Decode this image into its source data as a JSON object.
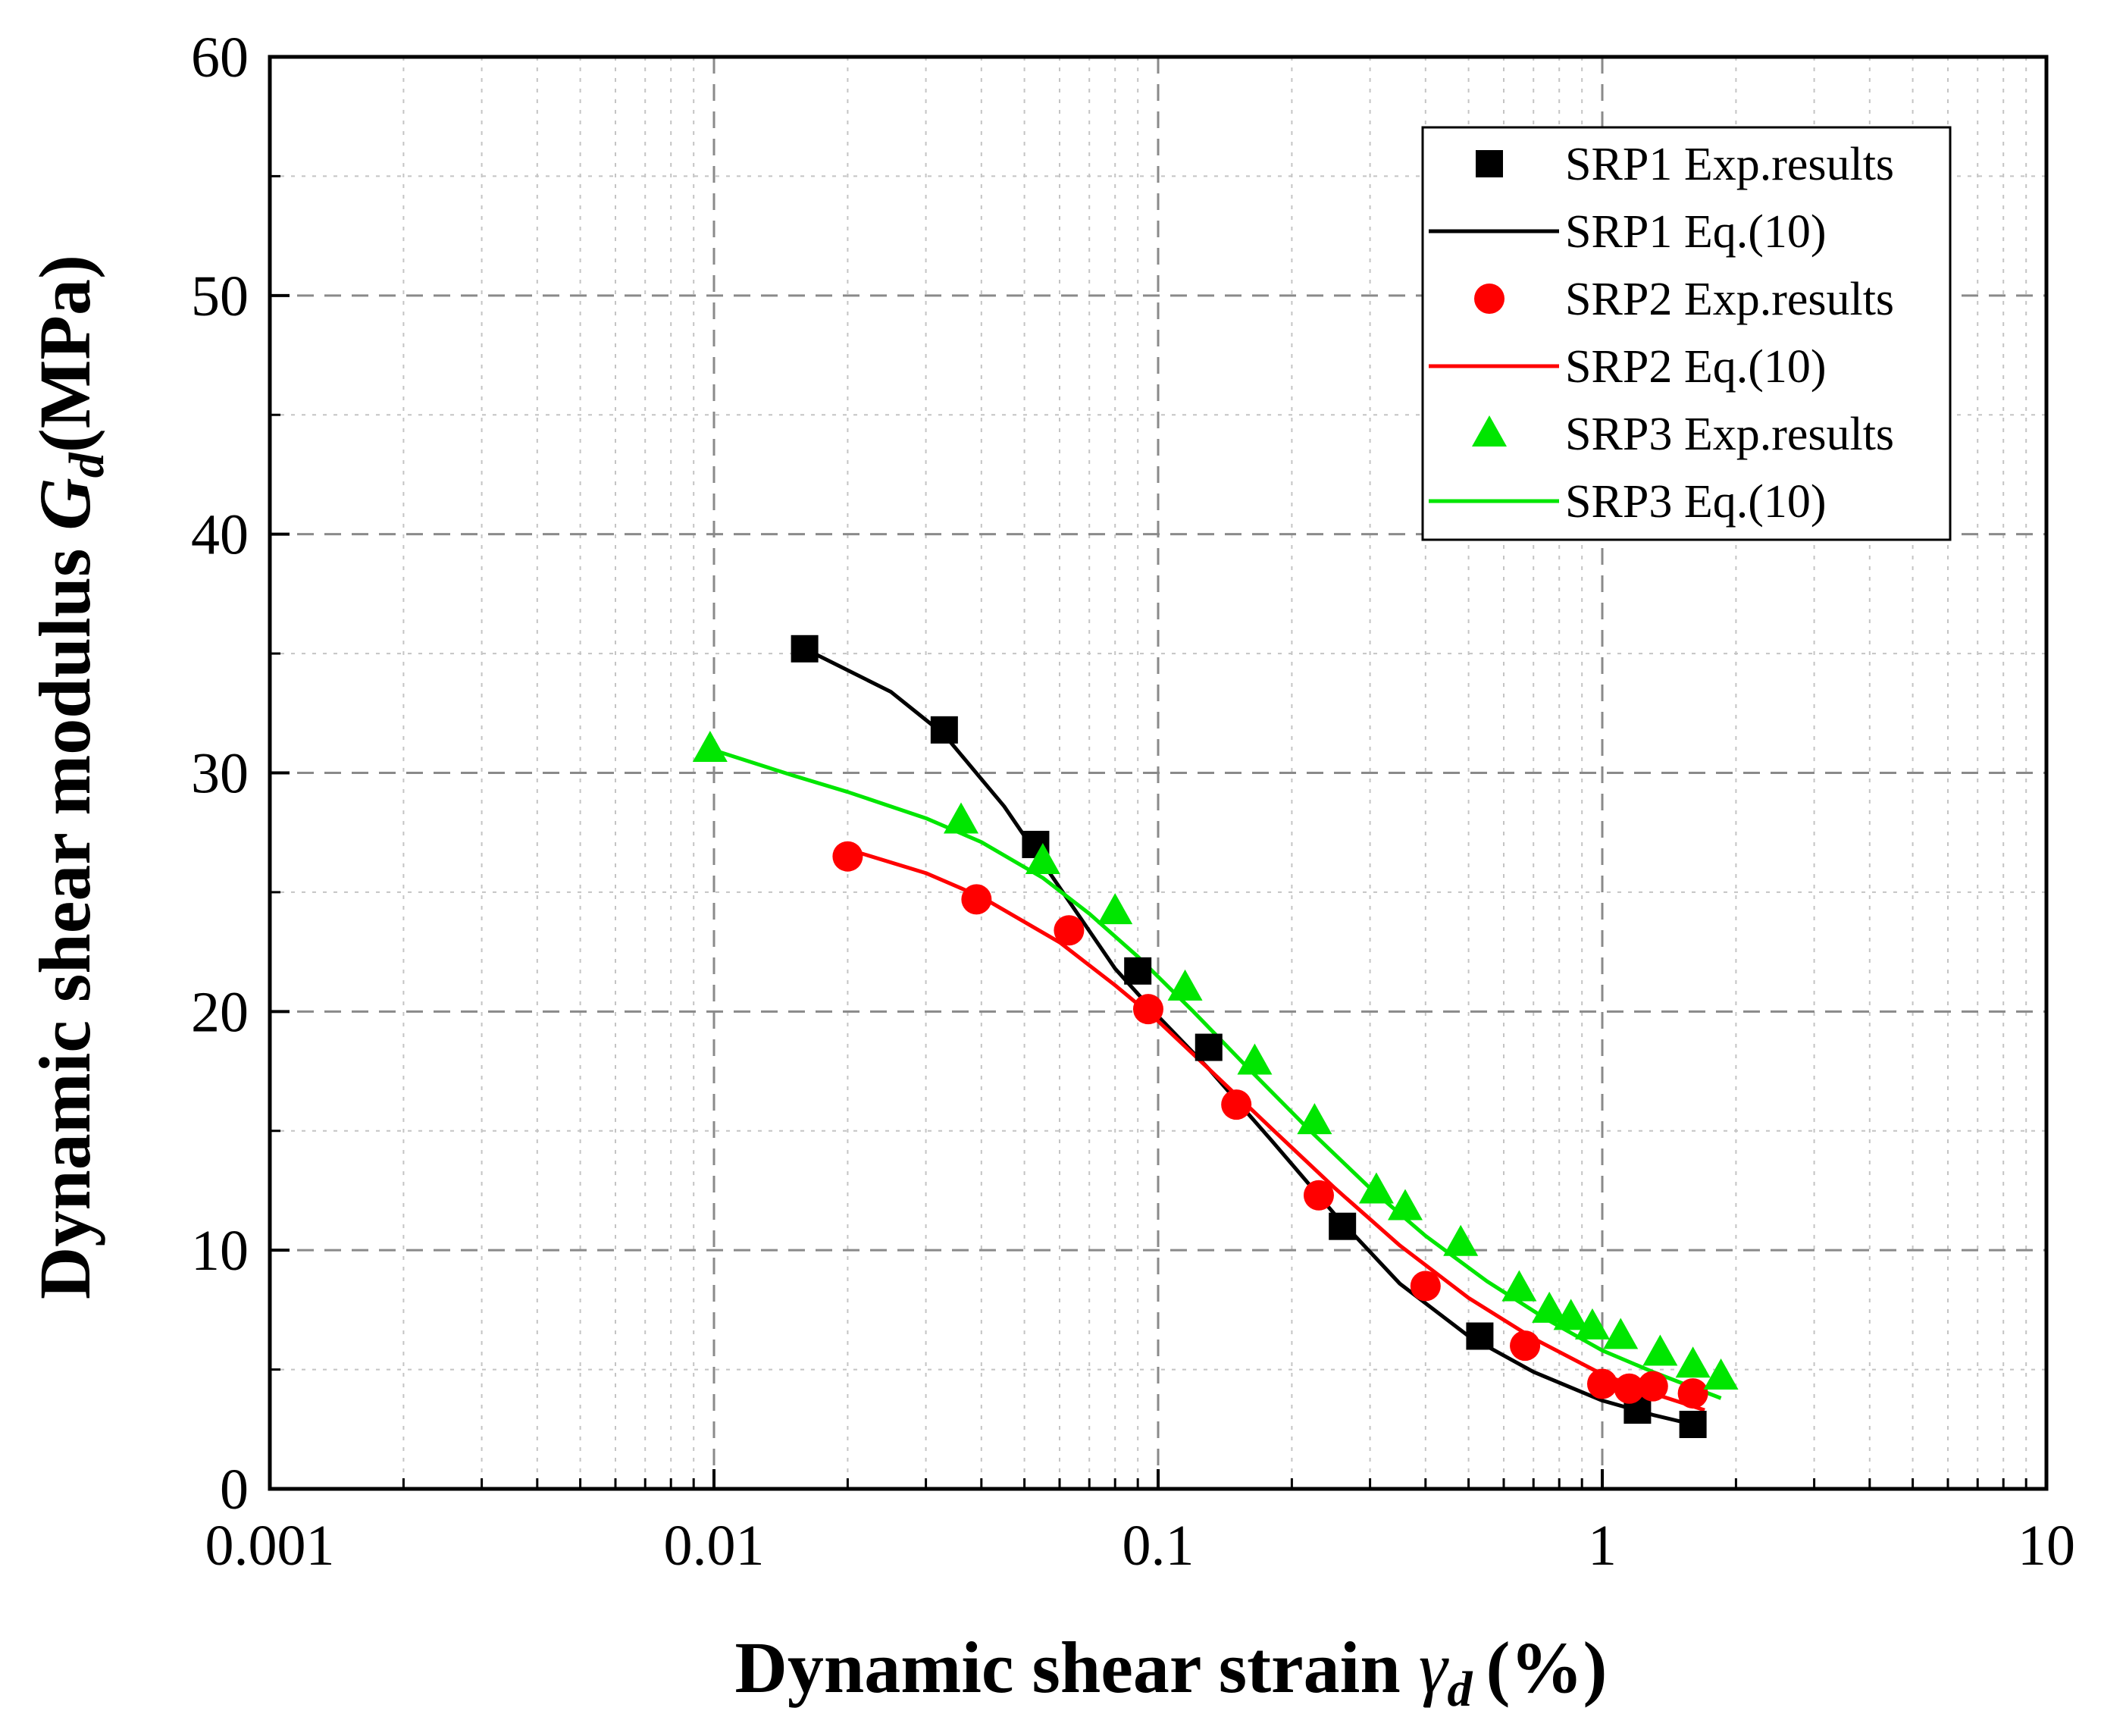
{
  "chart_data": {
    "type": "scatter",
    "title": "",
    "xlabel": "Dynamic shear strain",
    "xlabel_symbol": "γ",
    "xlabel_subscript": "d",
    "xlabel_unit": "(%)",
    "ylabel": "Dynamic shear modulus",
    "ylabel_symbol": "G",
    "ylabel_subscript": "d",
    "ylabel_unit": "(MPa)",
    "xscale": "log",
    "xlim": [
      0.001,
      10
    ],
    "ylim": [
      0,
      60
    ],
    "x_ticks": [
      0.001,
      0.01,
      0.1,
      1,
      10
    ],
    "x_tick_labels": [
      "0.001",
      "0.01",
      "0.1",
      "1",
      "10"
    ],
    "y_ticks": [
      0,
      10,
      20,
      30,
      40,
      50,
      60
    ],
    "y_tick_labels": [
      "0",
      "10",
      "20",
      "30",
      "40",
      "50",
      "60"
    ],
    "grid": true,
    "legend_position": "top-right",
    "series": [
      {
        "name": "SRP1 Exp.results",
        "kind": "points",
        "marker": "square",
        "color": "#000000",
        "x": [
          0.016,
          0.033,
          0.053,
          0.09,
          0.13,
          0.26,
          0.53,
          1.2,
          1.6
        ],
        "y": [
          35.2,
          31.8,
          27.0,
          21.7,
          18.5,
          11.0,
          6.4,
          3.3,
          2.7
        ]
      },
      {
        "name": "SRP1 Eq.(10)",
        "kind": "line",
        "color": "#000000",
        "x": [
          0.016,
          0.025,
          0.033,
          0.045,
          0.06,
          0.08,
          0.1,
          0.13,
          0.18,
          0.25,
          0.35,
          0.5,
          0.7,
          1.0,
          1.3,
          1.6
        ],
        "y": [
          35.2,
          33.4,
          31.6,
          28.6,
          25.2,
          21.8,
          19.8,
          17.6,
          14.6,
          11.5,
          8.6,
          6.4,
          4.9,
          3.7,
          3.1,
          2.7
        ]
      },
      {
        "name": "SRP2 Exp.results",
        "kind": "points",
        "marker": "circle",
        "color": "#ff0000",
        "x": [
          0.02,
          0.039,
          0.063,
          0.095,
          0.15,
          0.23,
          0.4,
          0.67,
          1.0,
          1.15,
          1.3,
          1.6
        ],
        "y": [
          26.5,
          24.7,
          23.4,
          20.1,
          16.1,
          12.3,
          8.5,
          6.0,
          4.4,
          4.2,
          4.3,
          4.0
        ]
      },
      {
        "name": "SRP2 Eq.(10)",
        "kind": "line",
        "color": "#ff0000",
        "x": [
          0.02,
          0.03,
          0.04,
          0.06,
          0.08,
          0.1,
          0.13,
          0.18,
          0.25,
          0.35,
          0.5,
          0.7,
          1.0,
          1.3,
          1.7
        ],
        "y": [
          26.8,
          25.8,
          24.8,
          22.9,
          21.1,
          19.6,
          17.6,
          15.1,
          12.6,
          10.2,
          8.0,
          6.3,
          4.8,
          4.0,
          3.3
        ]
      },
      {
        "name": "SRP3 Exp.results",
        "kind": "points",
        "marker": "triangle",
        "color": "#00e600",
        "x": [
          0.0098,
          0.036,
          0.055,
          0.08,
          0.115,
          0.165,
          0.225,
          0.31,
          0.36,
          0.48,
          0.65,
          0.76,
          0.85,
          0.95,
          1.1,
          1.35,
          1.6,
          1.85
        ],
        "y": [
          31.0,
          28.0,
          26.3,
          24.2,
          21.0,
          17.9,
          15.4,
          12.5,
          11.8,
          10.3,
          8.4,
          7.5,
          7.2,
          6.8,
          6.4,
          5.7,
          5.2,
          4.7
        ]
      },
      {
        "name": "SRP3 Eq.(10)",
        "kind": "line",
        "color": "#00e600",
        "x": [
          0.0098,
          0.015,
          0.02,
          0.03,
          0.04,
          0.055,
          0.07,
          0.09,
          0.12,
          0.16,
          0.22,
          0.3,
          0.4,
          0.55,
          0.75,
          1.0,
          1.3,
          1.85
        ],
        "y": [
          31.0,
          29.9,
          29.2,
          28.1,
          27.1,
          25.6,
          24.1,
          22.3,
          20.0,
          17.6,
          15.0,
          12.6,
          10.6,
          8.7,
          7.1,
          5.8,
          4.9,
          3.8
        ]
      }
    ]
  }
}
